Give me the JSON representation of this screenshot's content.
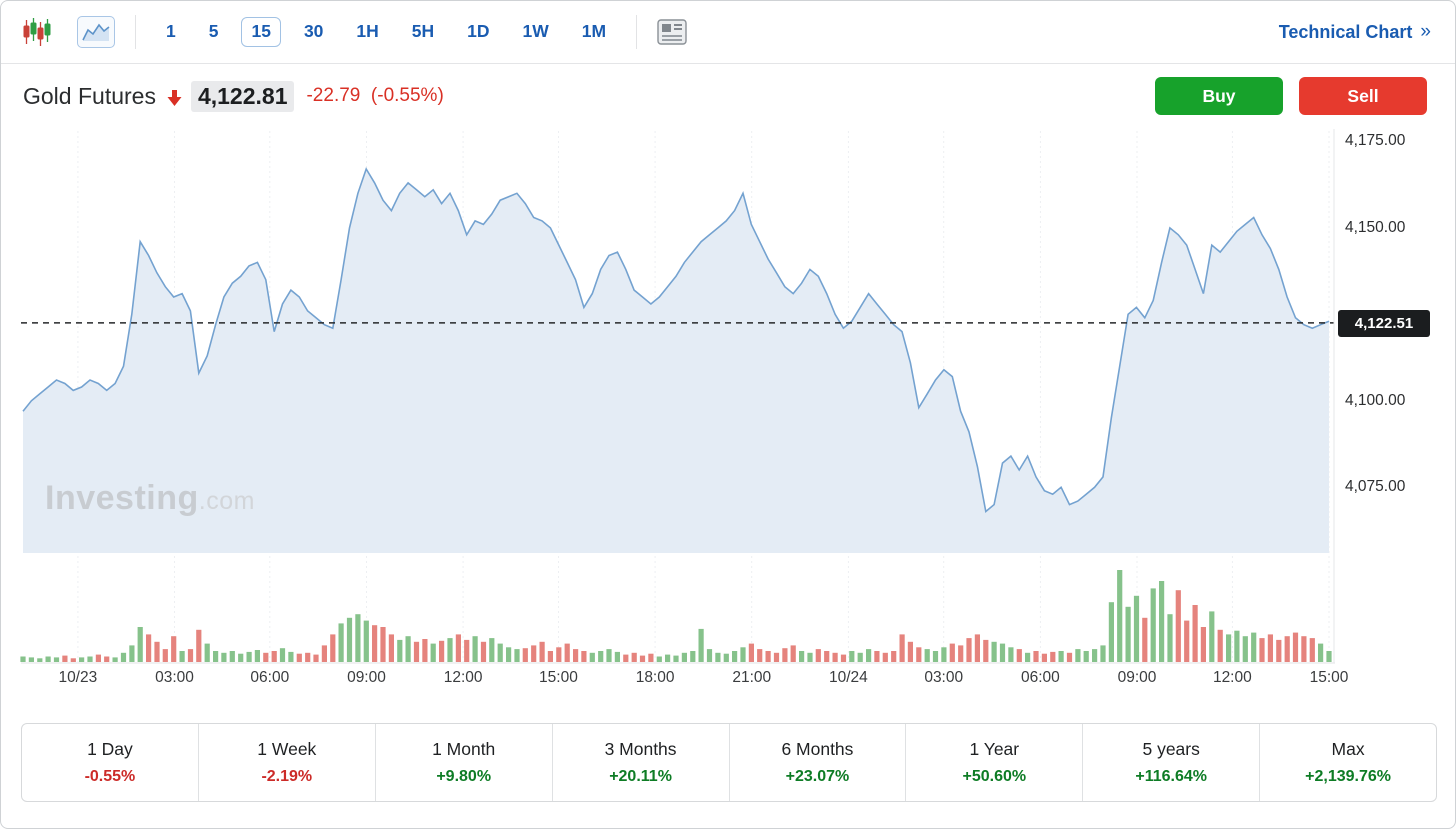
{
  "toolbar": {
    "timeframes": [
      {
        "label": "1",
        "selected": false
      },
      {
        "label": "5",
        "selected": false
      },
      {
        "label": "15",
        "selected": true
      },
      {
        "label": "30",
        "selected": false
      },
      {
        "label": "1H",
        "selected": false
      },
      {
        "label": "5H",
        "selected": false
      },
      {
        "label": "1D",
        "selected": false
      },
      {
        "label": "1W",
        "selected": false
      },
      {
        "label": "1M",
        "selected": false
      }
    ],
    "technical_chart": {
      "label": "Technical Chart",
      "arrow": "»"
    }
  },
  "header": {
    "title": "Gold Futures",
    "price": "4,122.81",
    "change": "-22.79",
    "change_percent": "(-0.55%)",
    "buy_label": "Buy",
    "sell_label": "Sell"
  },
  "chart": {
    "watermark": "Investing",
    "watermark_suffix": ".com",
    "last_price_label": "4,122.51"
  },
  "chart_data": {
    "type": "area",
    "title": "Gold Futures",
    "timeframe": "15",
    "ylim": [
      4056,
      4178
    ],
    "last_price": 4122.51,
    "y_ticks": [
      {
        "label": "4,175.00",
        "value": 4175
      },
      {
        "label": "4,150.00",
        "value": 4150
      },
      {
        "label": "4,100.00",
        "value": 4100
      },
      {
        "label": "4,075.00",
        "value": 4075
      }
    ],
    "x_ticks": [
      {
        "label": "10/23",
        "pos": 0.042
      },
      {
        "label": "03:00",
        "pos": 0.116
      },
      {
        "label": "06:00",
        "pos": 0.189
      },
      {
        "label": "09:00",
        "pos": 0.263
      },
      {
        "label": "12:00",
        "pos": 0.337
      },
      {
        "label": "15:00",
        "pos": 0.41
      },
      {
        "label": "18:00",
        "pos": 0.484
      },
      {
        "label": "21:00",
        "pos": 0.558
      },
      {
        "label": "10/24",
        "pos": 0.632
      },
      {
        "label": "03:00",
        "pos": 0.705
      },
      {
        "label": "06:00",
        "pos": 0.779
      },
      {
        "label": "09:00",
        "pos": 0.853
      },
      {
        "label": "12:00",
        "pos": 0.926
      },
      {
        "label": "15:00",
        "pos": 1.0
      }
    ],
    "prices": [
      4097,
      4100,
      4102,
      4104,
      4106,
      4105,
      4103,
      4104,
      4106,
      4105,
      4103,
      4105,
      4110,
      4125,
      4146,
      4142,
      4137,
      4133,
      4130,
      4131,
      4126,
      4108,
      4113,
      4122,
      4130,
      4134,
      4136,
      4139,
      4140,
      4135,
      4120,
      4128,
      4132,
      4130,
      4126,
      4124,
      4122,
      4121,
      4135,
      4150,
      4160,
      4167,
      4163,
      4158,
      4155,
      4160,
      4163,
      4161,
      4159,
      4161,
      4157,
      4160,
      4155,
      4148,
      4152,
      4151,
      4154,
      4158,
      4159,
      4160,
      4157,
      4153,
      4152,
      4150,
      4145,
      4140,
      4135,
      4127,
      4131,
      4138,
      4142,
      4143,
      4138,
      4132,
      4130,
      4128,
      4130,
      4133,
      4136,
      4140,
      4143,
      4146,
      4148,
      4150,
      4152,
      4155,
      4160,
      4151,
      4146,
      4141,
      4137,
      4133,
      4131,
      4134,
      4138,
      4136,
      4131,
      4125,
      4121,
      4123,
      4127,
      4131,
      4128,
      4125,
      4122,
      4120,
      4111,
      4098,
      4102,
      4106,
      4109,
      4107,
      4097,
      4091,
      4081,
      4068,
      4070,
      4082,
      4084,
      4080,
      4084,
      4078,
      4074,
      4073,
      4075,
      4070,
      4071,
      4073,
      4075,
      4078,
      4095,
      4110,
      4125,
      4127,
      4124,
      4129,
      4140,
      4150,
      4148,
      4145,
      4138,
      4131,
      4145,
      4143,
      4146,
      4149,
      4151,
      4153,
      4148,
      4144,
      4138,
      4130,
      4124,
      4122,
      4121,
      4122,
      4123
    ],
    "volume": [
      6,
      5,
      4,
      6,
      5,
      7,
      4,
      5,
      6,
      8,
      6,
      5,
      10,
      18,
      38,
      30,
      22,
      14,
      28,
      12,
      14,
      35,
      20,
      12,
      10,
      12,
      9,
      11,
      13,
      10,
      12,
      15,
      11,
      9,
      10,
      8,
      18,
      30,
      42,
      48,
      52,
      45,
      40,
      38,
      30,
      24,
      28,
      22,
      25,
      20,
      23,
      26,
      30,
      24,
      28,
      22,
      26,
      20,
      16,
      14,
      15,
      18,
      22,
      12,
      16,
      20,
      14,
      12,
      10,
      12,
      14,
      11,
      8,
      10,
      7,
      9,
      6,
      8,
      7,
      10,
      12,
      36,
      14,
      10,
      9,
      12,
      16,
      20,
      14,
      12,
      10,
      15,
      18,
      12,
      10,
      14,
      12,
      10,
      8,
      12,
      10,
      14,
      12,
      10,
      12,
      30,
      22,
      16,
      14,
      12,
      16,
      20,
      18,
      26,
      30,
      24,
      22,
      20,
      16,
      14,
      10,
      12,
      9,
      11,
      12,
      10,
      14,
      12,
      14,
      18,
      65,
      100,
      60,
      72,
      48,
      80,
      88,
      52,
      78,
      45,
      62,
      38,
      55,
      35,
      30,
      34,
      28,
      32,
      26,
      30,
      24,
      28,
      32,
      28,
      26,
      20,
      12
    ],
    "colors": {
      "line": "#74a2d0",
      "fill": "#e4ecf5",
      "volume_up": "#86c28b",
      "volume_down": "#e5837d",
      "dashed": "#26282a",
      "accent_blue": "#1a5cb1",
      "negative_red": "#d93025",
      "buy_green": "#17a22b",
      "sell_red": "#e63a2e"
    }
  },
  "performance": [
    {
      "label": "1 Day",
      "value": "-0.55%",
      "direction": "down"
    },
    {
      "label": "1 Week",
      "value": "-2.19%",
      "direction": "down"
    },
    {
      "label": "1 Month",
      "value": "+9.80%",
      "direction": "up"
    },
    {
      "label": "3 Months",
      "value": "+20.11%",
      "direction": "up"
    },
    {
      "label": "6 Months",
      "value": "+23.07%",
      "direction": "up"
    },
    {
      "label": "1 Year",
      "value": "+50.60%",
      "direction": "up"
    },
    {
      "label": "5 years",
      "value": "+116.64%",
      "direction": "up"
    },
    {
      "label": "Max",
      "value": "+2,139.76%",
      "direction": "up"
    }
  ]
}
